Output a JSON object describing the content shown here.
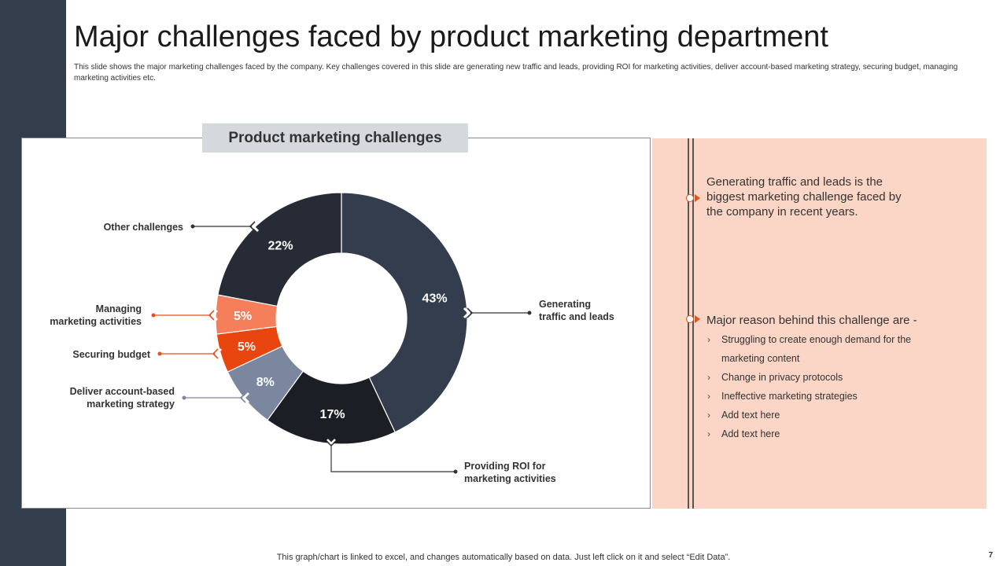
{
  "slide": {
    "title": "Major challenges faced by product marketing department",
    "subtitle": "This slide shows the major marketing challenges faced by the company. Key challenges covered in this slide are generating new traffic and leads, providing ROI  for marketing activities, deliver account-based marketing strategy, securing budget, managing marketing activities etc.",
    "footer": "This graph/chart is linked to excel,  and changes automatically based on data. Just left click on it and select “Edit Data”.",
    "page_number": "7"
  },
  "chart_data": {
    "type": "pie",
    "title": "Product marketing challenges",
    "slices": [
      {
        "label": "Generating traffic and leads",
        "value": 43,
        "display": "43%",
        "color": "#333d4e"
      },
      {
        "label": "Providing ROI for marketing activities",
        "value": 17,
        "display": "17%",
        "color": "#1b1e24"
      },
      {
        "label": "Deliver account-based marketing strategy",
        "value": 8,
        "display": "8%",
        "color": "#7a879e"
      },
      {
        "label": "Securing budget",
        "value": 5,
        "display": "5%",
        "color": "#e8450f"
      },
      {
        "label": "Managing marketing activities",
        "value": 5,
        "display": "5%",
        "color": "#f47f5a"
      },
      {
        "label": "Other challenges",
        "value": 22,
        "display": "22%",
        "color": "#272b36"
      }
    ],
    "callout_labels": [
      [
        "Generating",
        "traffic and leads"
      ],
      [
        "Providing ROI for",
        "marketing activities"
      ],
      [
        "Deliver account-based",
        "marketing strategy"
      ],
      [
        "Securing budget"
      ],
      [
        "Managing",
        "marketing activities"
      ],
      [
        "Other challenges"
      ]
    ],
    "legend": "none",
    "colors": {
      "leader_dark": "#333333",
      "leader_orange": "#e8501e",
      "leader_grey": "#7a879e"
    }
  },
  "panel": {
    "point1": "Generating traffic and leads is the biggest marketing challenge faced by the company in recent years.",
    "point2": "Major reason behind this challenge are -",
    "bullets": [
      "Struggling to create enough demand for the marketing content",
      "Change  in privacy  protocols",
      "Ineffective  marketing strategies",
      "Add text here",
      "Add text here"
    ],
    "accent_color": "#e8501e",
    "bullet_icon": "chevron-right-icon"
  }
}
